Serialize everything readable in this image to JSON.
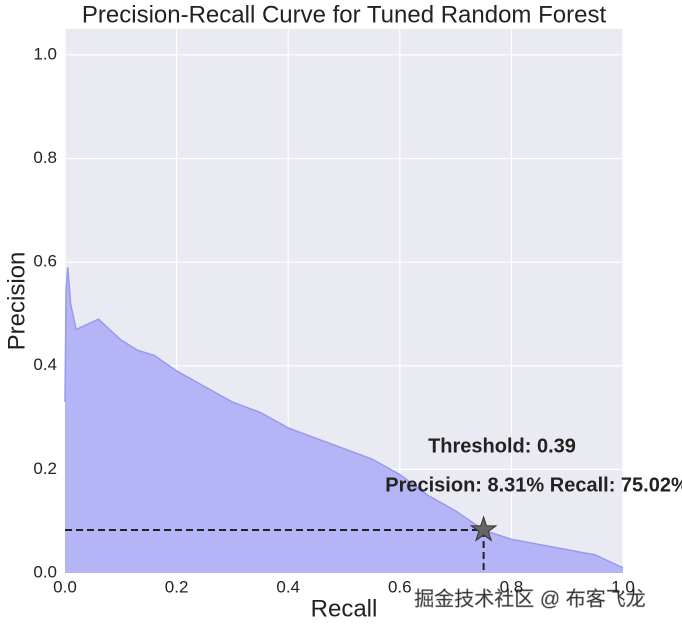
{
  "chart_data": {
    "type": "area",
    "title": "Precision-Recall Curve for Tuned Random Forest",
    "xlabel": "Recall",
    "ylabel": "Precision",
    "x": [
      0,
      0.002,
      0.005,
      0.01,
      0.02,
      0.04,
      0.06,
      0.08,
      0.1,
      0.13,
      0.16,
      0.2,
      0.25,
      0.3,
      0.35,
      0.4,
      0.45,
      0.5,
      0.55,
      0.6,
      0.65,
      0.7,
      0.75,
      0.8,
      0.85,
      0.9,
      0.95,
      1.0
    ],
    "series": [
      {
        "name": "Precision",
        "color": "#9999ee",
        "values": [
          0.33,
          0.55,
          0.59,
          0.52,
          0.47,
          0.48,
          0.49,
          0.47,
          0.45,
          0.43,
          0.42,
          0.39,
          0.36,
          0.33,
          0.31,
          0.28,
          0.26,
          0.24,
          0.22,
          0.19,
          0.15,
          0.12,
          0.083,
          0.065,
          0.055,
          0.045,
          0.035,
          0.01
        ]
      }
    ],
    "fill_color": "#b4b4f6",
    "xlim": [
      0,
      1
    ],
    "ylim": [
      0,
      1.05
    ],
    "xticks": [
      {
        "value": 0,
        "label": "0.0"
      },
      0.2,
      0.4,
      0.6,
      0.8,
      {
        "value": 1,
        "label": "1.0"
      }
    ],
    "yticks": [
      {
        "value": 0,
        "label": "0.0"
      },
      0.2,
      0.4,
      0.6,
      0.8,
      {
        "value": 1,
        "label": "1.0"
      }
    ],
    "grid": true,
    "marker": {
      "x": 0.7502,
      "y": 0.0831,
      "color": "#666666"
    },
    "annotations": [
      "Threshold: 0.39",
      "Precision: 8.31% Recall: 75.02%"
    ],
    "watermark": "掘金技术社区 @ 布客飞龙"
  }
}
